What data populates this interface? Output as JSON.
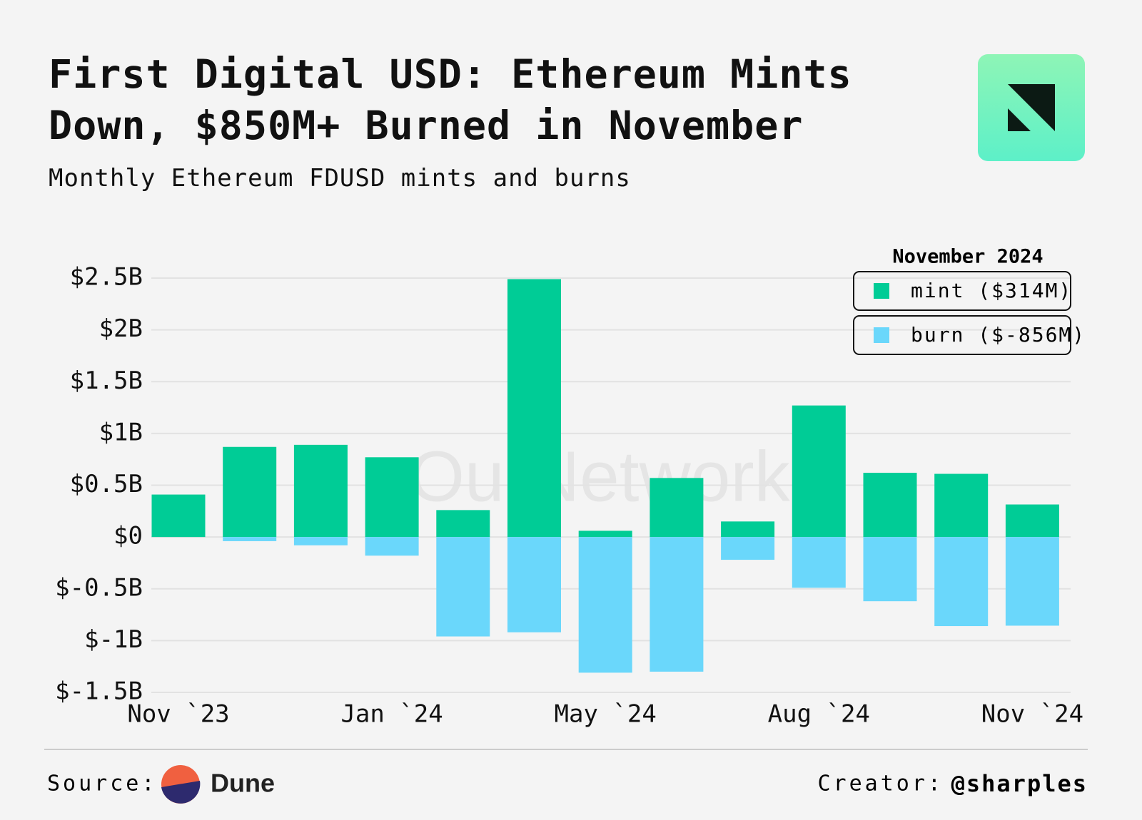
{
  "chart_data": {
    "type": "bar",
    "title": "First Digital USD: Ethereum Mints Down, $850M+ Burned in November",
    "subtitle": "Monthly Ethereum FDUSD mints and burns",
    "watermark": "OurNetwork",
    "categories": [
      "Nov `23",
      null,
      null,
      "Jan `24",
      null,
      null,
      "May `24",
      null,
      null,
      "Aug `24",
      null,
      null,
      "Nov `24"
    ],
    "series": [
      {
        "name": "mint ($314M)",
        "color": "#00cc96",
        "values": [
          0.41,
          0.87,
          0.89,
          0.77,
          0.26,
          2.49,
          0.06,
          0.57,
          0.15,
          1.27,
          0.62,
          0.61,
          0.314
        ]
      },
      {
        "name": "burn ($-856M)",
        "color": "#6ad7fb",
        "values": [
          0,
          -0.04,
          -0.08,
          -0.18,
          -0.96,
          -0.92,
          -1.31,
          -1.3,
          -0.22,
          -0.49,
          -0.62,
          -0.86,
          -0.856
        ]
      }
    ],
    "legend_title": "November 2024",
    "legend": "upper right",
    "ylim": [
      -1.5,
      2.5
    ],
    "yticks": [
      {
        "value": -1.5,
        "label": "$-1.5B"
      },
      {
        "value": -1,
        "label": "$-1B"
      },
      {
        "value": -0.5,
        "label": "$-0.5B"
      },
      {
        "value": 0,
        "label": "$0"
      },
      {
        "value": 0.5,
        "label": "$0.5B"
      },
      {
        "value": 1,
        "label": "$1B"
      },
      {
        "value": 1.5,
        "label": "$1.5B"
      },
      {
        "value": 2,
        "label": "$2B"
      },
      {
        "value": 2.5,
        "label": "$2.5B"
      }
    ],
    "grid": true
  },
  "footer": {
    "source_label": "Source:",
    "source": "Dune",
    "creator_label": "Creator:",
    "creator": "@sharples"
  }
}
